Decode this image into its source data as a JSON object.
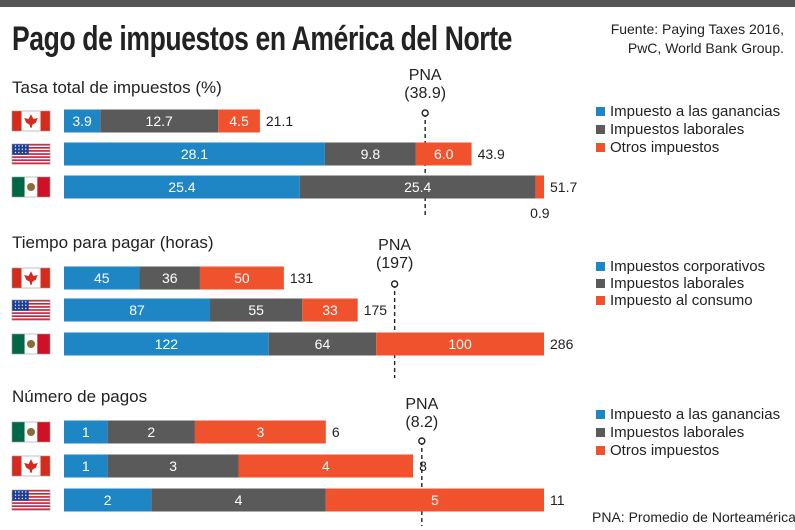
{
  "header": {
    "title": "Pago de impuestos en América del Norte",
    "source_line1": "Fuente: Paying Taxes 2016,",
    "source_line2": "PwC, World Bank Group."
  },
  "footnote": "PNA: Promedio de Norteamérica",
  "colors": {
    "blue": "#1f86c5",
    "gray": "#5a5a5a",
    "orange": "#f0522d",
    "top_bar": "#555555"
  },
  "chart_data": [
    {
      "type": "bar",
      "orientation": "horizontal",
      "stacked": true,
      "title": "Tasa total de impuestos (%)",
      "avg_label": "PNA",
      "avg_value_label": "(38.9)",
      "avg_value": 38.9,
      "xlim": [
        0,
        51.7
      ],
      "legend": [
        "Impuesto a las ganancias",
        "Impuestos laborales",
        "Otros impuestos"
      ],
      "legend_position": "right",
      "rows": [
        {
          "country": "canada",
          "values": [
            3.9,
            12.7,
            4.5
          ],
          "labels": [
            "3.9",
            "12.7",
            "4.5"
          ],
          "total": "21.1"
        },
        {
          "country": "usa",
          "values": [
            28.1,
            9.8,
            6.0
          ],
          "labels": [
            "28.1",
            "9.8",
            "6.0"
          ],
          "total": "43.9"
        },
        {
          "country": "mexico",
          "values": [
            25.4,
            25.4,
            0.9
          ],
          "labels": [
            "25.4",
            "25.4",
            "0.9"
          ],
          "total": "51.7"
        }
      ]
    },
    {
      "type": "bar",
      "orientation": "horizontal",
      "stacked": true,
      "title": "Tiempo para pagar (horas)",
      "avg_label": "PNA",
      "avg_value_label": "(197)",
      "avg_value": 197,
      "xlim": [
        0,
        286
      ],
      "legend": [
        "Impuestos corporativos",
        "Impuestos laborales",
        "Impuesto al consumo"
      ],
      "legend_position": "right",
      "rows": [
        {
          "country": "canada",
          "values": [
            45,
            36,
            50
          ],
          "labels": [
            "45",
            "36",
            "50"
          ],
          "total": "131"
        },
        {
          "country": "usa",
          "values": [
            87,
            55,
            33
          ],
          "labels": [
            "87",
            "55",
            "33"
          ],
          "total": "175"
        },
        {
          "country": "mexico",
          "values": [
            122,
            64,
            100
          ],
          "labels": [
            "122",
            "64",
            "100"
          ],
          "total": "286"
        }
      ]
    },
    {
      "type": "bar",
      "orientation": "horizontal",
      "stacked": true,
      "title": "Número de pagos",
      "avg_label": "PNA",
      "avg_value_label": "(8.2)",
      "avg_value": 8.2,
      "xlim": [
        0,
        11
      ],
      "legend": [
        "Impuesto a las ganancias",
        "Impuestos laborales",
        "Otros impuestos"
      ],
      "legend_position": "right",
      "rows": [
        {
          "country": "mexico",
          "values": [
            1,
            2,
            3
          ],
          "labels": [
            "1",
            "2",
            "3"
          ],
          "total": "6"
        },
        {
          "country": "canada",
          "values": [
            1,
            3,
            4
          ],
          "labels": [
            "1",
            "3",
            "4"
          ],
          "total": "8"
        },
        {
          "country": "usa",
          "values": [
            2,
            4,
            5
          ],
          "labels": [
            "2",
            "4",
            "5"
          ],
          "total": "11"
        }
      ]
    }
  ]
}
